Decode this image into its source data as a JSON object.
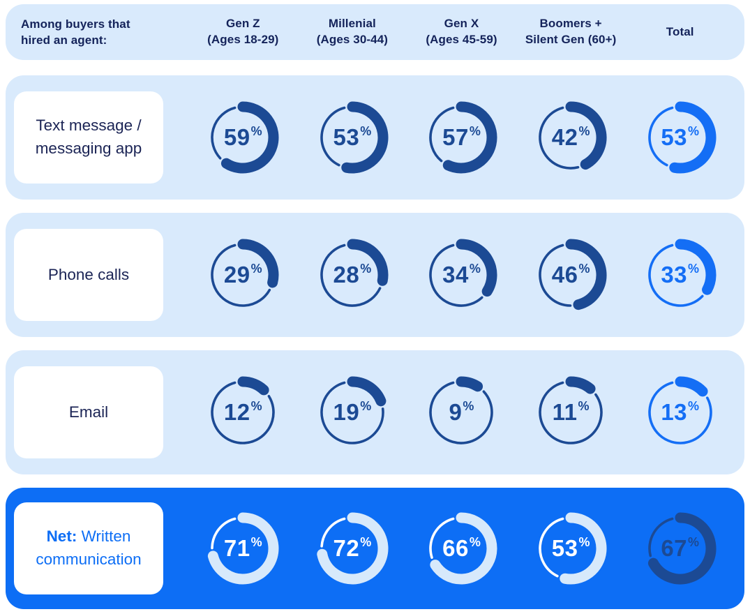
{
  "intro_label": "Among buyers that\nhired an agent:",
  "columns": [
    {
      "title": "Gen Z",
      "subtitle": "(Ages 18-29)"
    },
    {
      "title": "Millenial",
      "subtitle": "(Ages 30-44)"
    },
    {
      "title": "Gen X",
      "subtitle": "(Ages 45-59)"
    },
    {
      "title": "Boomers +",
      "subtitle": "Silent Gen (60+)"
    },
    {
      "title": "Total",
      "subtitle": ""
    }
  ],
  "rows": [
    {
      "label": "Text message / messaging app",
      "label_bold": "",
      "theme": "light",
      "values": [
        59,
        53,
        57,
        42,
        53
      ]
    },
    {
      "label": "Phone calls",
      "label_bold": "",
      "theme": "light",
      "values": [
        29,
        28,
        34,
        46,
        33
      ]
    },
    {
      "label": "Email",
      "label_bold": "",
      "theme": "light",
      "values": [
        12,
        19,
        9,
        11,
        13
      ]
    },
    {
      "label": " Written communication",
      "label_bold": "Net:",
      "theme": "inverse",
      "values": [
        71,
        72,
        66,
        53,
        67
      ]
    }
  ],
  "unit": "%",
  "colors": {
    "band_bg": "#d9eafc",
    "row_highlight_bg": "#0d6ef5",
    "navy": "#1c4a94",
    "bright_blue": "#146ef5",
    "inverse_arc": "#d7e9fb",
    "inverse_rail": "#ffffff",
    "inverse_text": "#ffffff",
    "header_text": "#14235a",
    "card_bg": "#ffffff"
  },
  "chart_data": {
    "type": "pie",
    "layout": "grid-of-donut-small-multiples",
    "title": "Among buyers that hired an agent:",
    "unit": "%",
    "categories": [
      "Gen Z (Ages 18-29)",
      "Millenial (Ages 30-44)",
      "Gen X (Ages 45-59)",
      "Boomers + Silent Gen (60+)",
      "Total"
    ],
    "series": [
      {
        "name": "Text message / messaging app",
        "values": [
          59,
          53,
          57,
          42,
          53
        ]
      },
      {
        "name": "Phone calls",
        "values": [
          29,
          28,
          34,
          46,
          33
        ]
      },
      {
        "name": "Email",
        "values": [
          12,
          19,
          9,
          11,
          13
        ]
      },
      {
        "name": "Net: Written communication",
        "values": [
          71,
          72,
          66,
          53,
          67
        ]
      }
    ],
    "donut_style": "thick arc = percentage, starts at 12 o'clock clockwise; thin arc = remainder with gaps",
    "legend_position": "none",
    "value_labels": "center of each donut"
  }
}
